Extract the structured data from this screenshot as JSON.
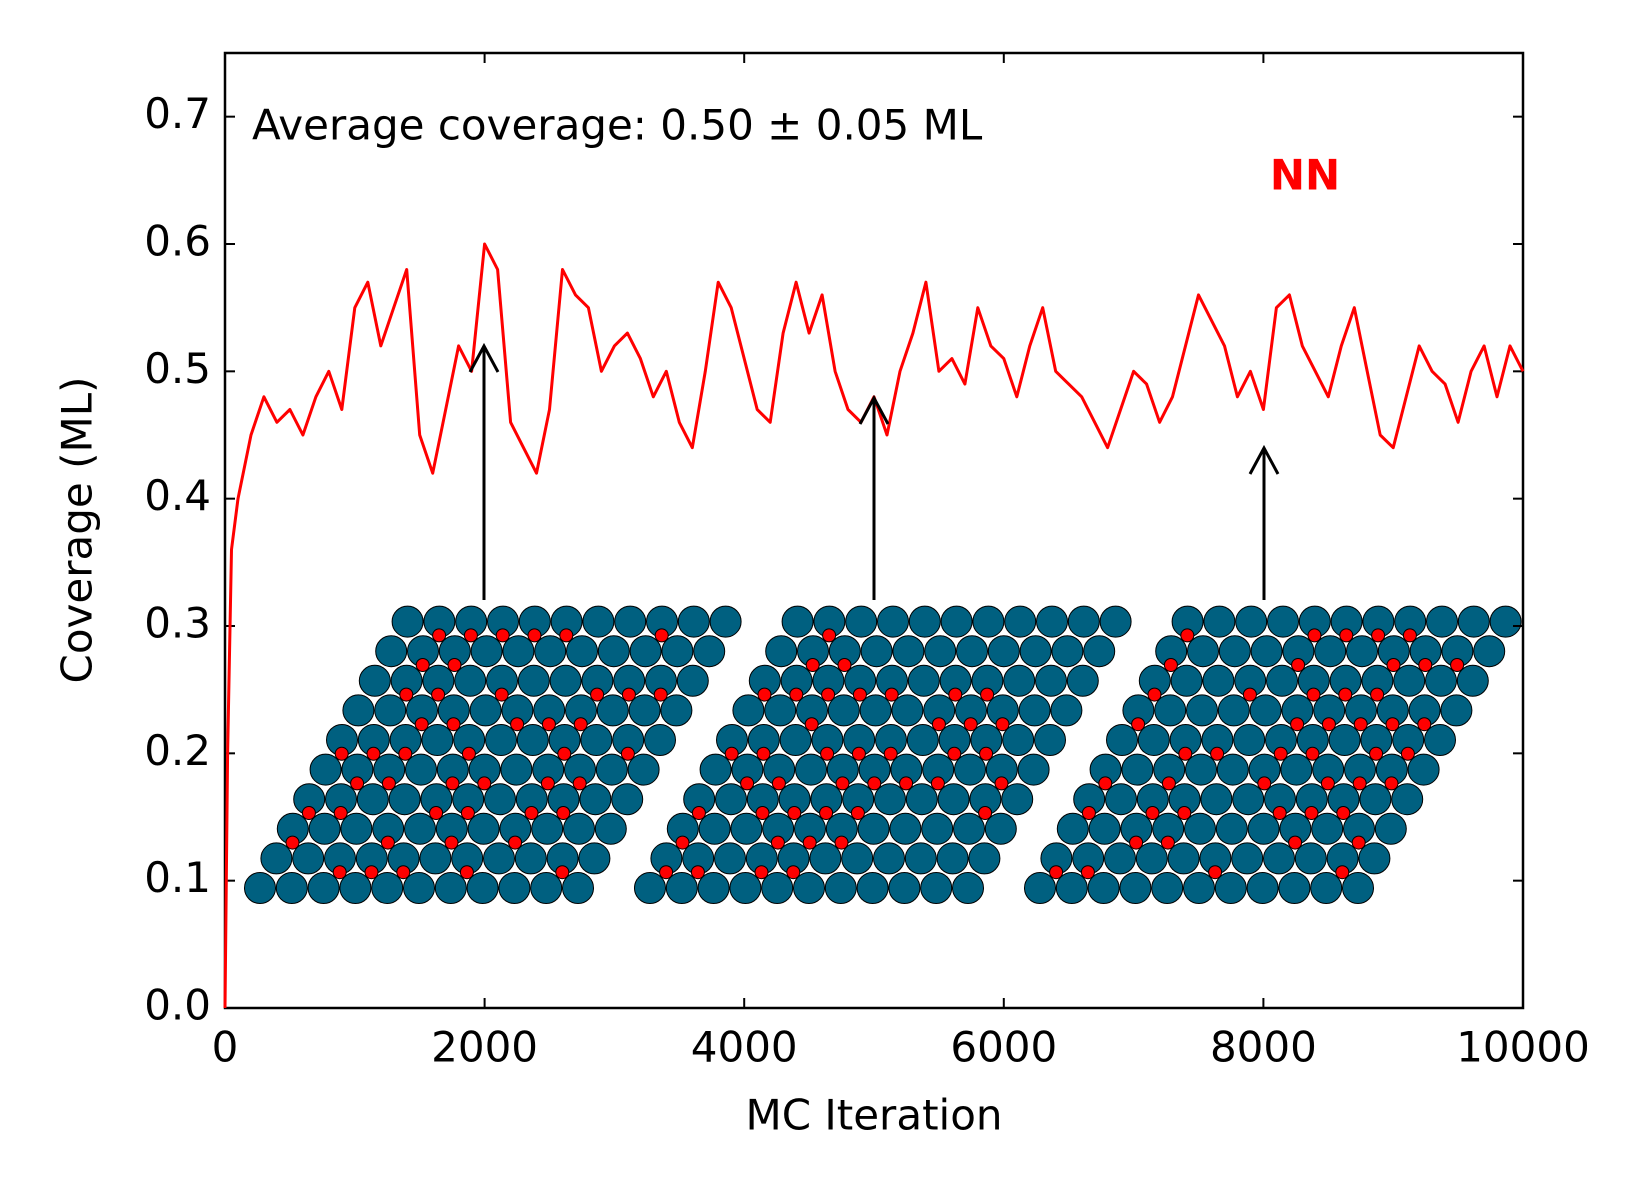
{
  "chart_data": {
    "type": "line",
    "xlabel": "MC Iteration",
    "ylabel": "Coverage (ML)",
    "annotation": "Average coverage: 0.50 ± 0.05 ML",
    "x": [
      0,
      20,
      50,
      100,
      200,
      300,
      400,
      500,
      600,
      700,
      800,
      900,
      1000,
      1100,
      1200,
      1300,
      1400,
      1500,
      1600,
      1700,
      1800,
      1900,
      2000,
      2100,
      2200,
      2300,
      2400,
      2500,
      2600,
      2700,
      2800,
      2900,
      3000,
      3100,
      3200,
      3300,
      3400,
      3500,
      3600,
      3700,
      3800,
      3900,
      4000,
      4100,
      4200,
      4300,
      4400,
      4500,
      4600,
      4700,
      4800,
      4900,
      5000,
      5100,
      5200,
      5300,
      5400,
      5500,
      5600,
      5700,
      5800,
      5900,
      6000,
      6100,
      6200,
      6300,
      6400,
      6500,
      6600,
      6700,
      6800,
      6900,
      7000,
      7100,
      7200,
      7300,
      7400,
      7500,
      7600,
      7700,
      7800,
      7900,
      8000,
      8100,
      8200,
      8300,
      8400,
      8500,
      8600,
      8700,
      8800,
      8900,
      9000,
      9100,
      9200,
      9300,
      9400,
      9500,
      9600,
      9700,
      9800,
      9900,
      10000
    ],
    "series": [
      {
        "name": "NN",
        "color": "#ff0000",
        "values": [
          0.0,
          0.2,
          0.36,
          0.4,
          0.45,
          0.48,
          0.46,
          0.47,
          0.45,
          0.48,
          0.5,
          0.47,
          0.55,
          0.57,
          0.52,
          0.55,
          0.58,
          0.45,
          0.42,
          0.47,
          0.52,
          0.5,
          0.6,
          0.58,
          0.46,
          0.44,
          0.42,
          0.47,
          0.58,
          0.56,
          0.55,
          0.5,
          0.52,
          0.53,
          0.51,
          0.48,
          0.5,
          0.46,
          0.44,
          0.5,
          0.57,
          0.55,
          0.51,
          0.47,
          0.46,
          0.53,
          0.57,
          0.53,
          0.56,
          0.5,
          0.47,
          0.46,
          0.48,
          0.45,
          0.5,
          0.53,
          0.57,
          0.5,
          0.51,
          0.49,
          0.55,
          0.52,
          0.51,
          0.48,
          0.52,
          0.55,
          0.5,
          0.49,
          0.48,
          0.46,
          0.44,
          0.47,
          0.5,
          0.49,
          0.46,
          0.48,
          0.52,
          0.56,
          0.54,
          0.52,
          0.48,
          0.5,
          0.47,
          0.55,
          0.56,
          0.52,
          0.5,
          0.48,
          0.52,
          0.55,
          0.5,
          0.45,
          0.44,
          0.48,
          0.52,
          0.5,
          0.49,
          0.46,
          0.5,
          0.52,
          0.48,
          0.52,
          0.5
        ]
      }
    ],
    "xlim": [
      0,
      10000
    ],
    "xticks": [
      0,
      2000,
      4000,
      6000,
      8000,
      10000
    ],
    "ylim": [
      0,
      0.75
    ],
    "yticks": [
      {
        "value": 0,
        "label": "0.0"
      },
      0.1,
      0.2,
      0.3,
      0.4,
      0.5,
      0.6,
      0.7
    ],
    "grid": false
  }
}
